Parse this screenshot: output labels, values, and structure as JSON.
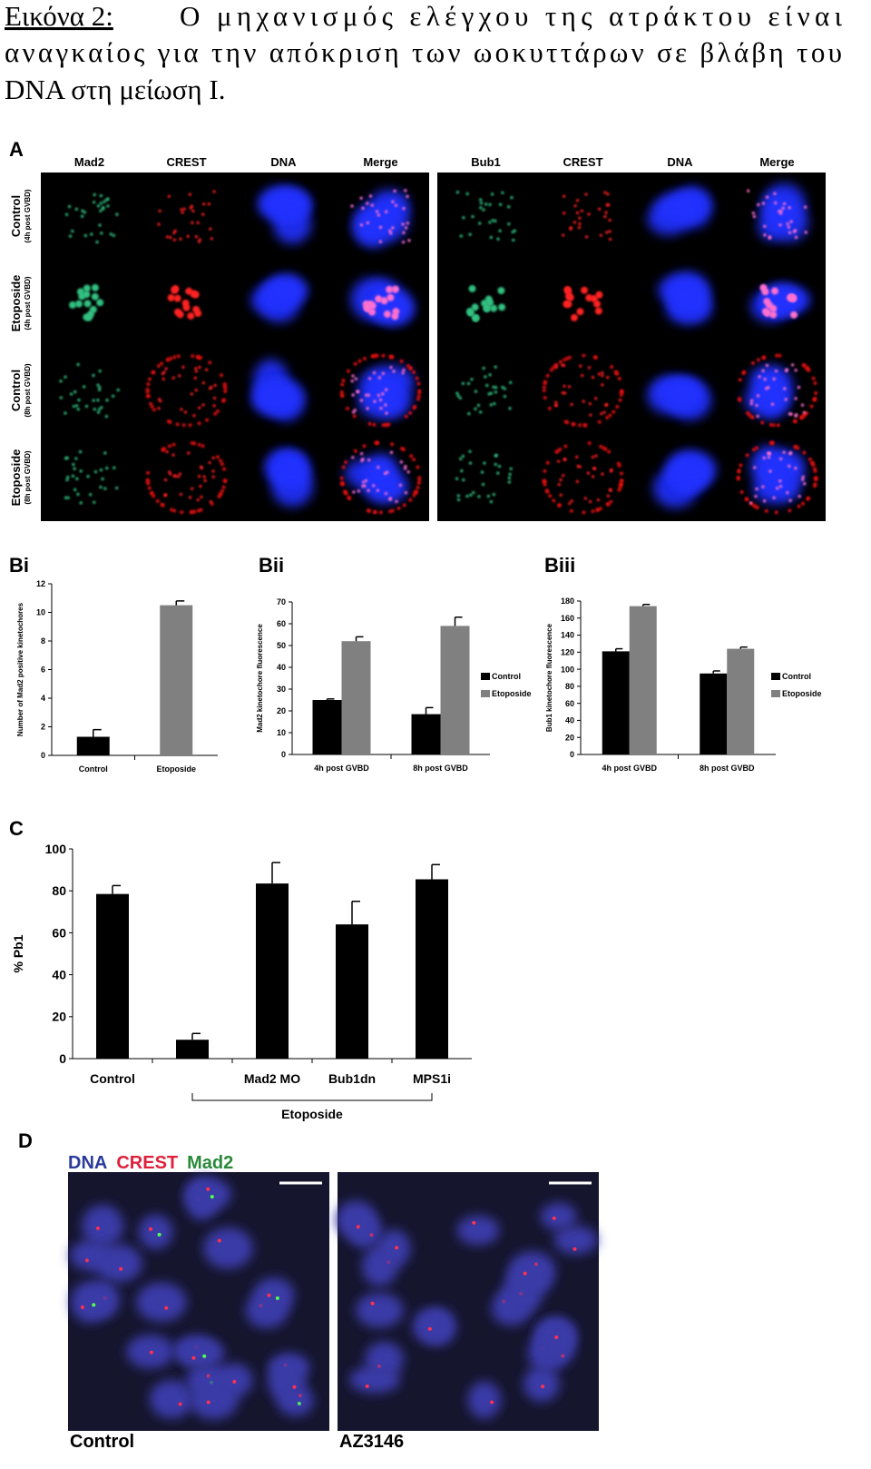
{
  "caption": {
    "label": "Εικόνα 2:",
    "lines": [
      "Ο μηχανισμός ελέγχου της ατράκτου είναι",
      "αναγκαίος για την απόκριση των ωοκυττάρων σε βλάβη του",
      "DNA στη μείωση I."
    ]
  },
  "panel_a": {
    "label": "A",
    "left_columns": [
      "Mad2",
      "CREST",
      "DNA",
      "Merge"
    ],
    "right_columns": [
      "Bub1",
      "CREST",
      "DNA",
      "Merge"
    ],
    "rows": [
      {
        "condition": "Control",
        "time": "(4h post GVBD)"
      },
      {
        "condition": "Etoposide",
        "time": "(4h post GVBD)"
      },
      {
        "condition": "Control",
        "time": "(8h post GVBD)"
      },
      {
        "condition": "Etoposide",
        "time": "(8h post GVBD)"
      }
    ]
  },
  "chart_data": [
    {
      "type": "bar",
      "panel": "Bi",
      "ylabel": "Number of Mad2 positive kinetochores",
      "categories": [
        "Control",
        "Etoposide"
      ],
      "values": [
        1.3,
        10.5
      ],
      "errors": [
        0.5,
        0.3
      ],
      "colors": [
        "#000000",
        "#808080"
      ],
      "ylim": [
        0,
        12
      ],
      "yticks": [
        0,
        2,
        4,
        6,
        8,
        10,
        12
      ]
    },
    {
      "type": "bar",
      "panel": "Bii",
      "ylabel": "Mad2 kinetochore fluorescence",
      "categories": [
        "4h post GVBD",
        "8h post GVBD"
      ],
      "series": [
        {
          "name": "Control",
          "color": "#000000",
          "values": [
            25,
            18.5
          ],
          "errors": [
            0.5,
            3
          ]
        },
        {
          "name": "Etoposide",
          "color": "#808080",
          "values": [
            52,
            59
          ],
          "errors": [
            2,
            4
          ]
        }
      ],
      "ylim": [
        0,
        70
      ],
      "yticks": [
        0,
        10,
        20,
        30,
        40,
        50,
        60,
        70
      ]
    },
    {
      "type": "bar",
      "panel": "Biii",
      "ylabel": "Bub1 kinetochore fluorescence",
      "categories": [
        "4h post GVBD",
        "8h post GVBD"
      ],
      "series": [
        {
          "name": "Control",
          "color": "#000000",
          "values": [
            121,
            95
          ],
          "errors": [
            3,
            3
          ]
        },
        {
          "name": "Etoposide",
          "color": "#808080",
          "values": [
            174,
            124
          ],
          "errors": [
            2,
            2
          ]
        }
      ],
      "ylim": [
        0,
        180
      ],
      "yticks": [
        0,
        20,
        40,
        60,
        80,
        100,
        120,
        140,
        160,
        180
      ]
    },
    {
      "type": "bar",
      "panel": "C",
      "ylabel": "% Pb1",
      "categories": [
        "Control",
        null,
        "Mad2 MO",
        "Bub1dn",
        "MPS1i"
      ],
      "group_label": "Etoposide",
      "values": [
        78.5,
        9,
        83.5,
        64,
        85.5
      ],
      "errors": [
        4,
        3,
        10,
        11,
        7
      ],
      "colors": [
        "#000000",
        "#000000",
        "#000000",
        "#000000",
        "#000000"
      ],
      "ylim": [
        0,
        100
      ],
      "yticks": [
        0,
        20,
        40,
        60,
        80,
        100
      ]
    }
  ],
  "panel_d": {
    "label": "D",
    "legend": [
      {
        "text": "DNA",
        "color": "#2b3a9a"
      },
      {
        "text": "CREST",
        "color": "#e0203a"
      },
      {
        "text": "Mad2",
        "color": "#2a8a3a"
      }
    ],
    "images": [
      "Control",
      "AZ3146"
    ]
  }
}
